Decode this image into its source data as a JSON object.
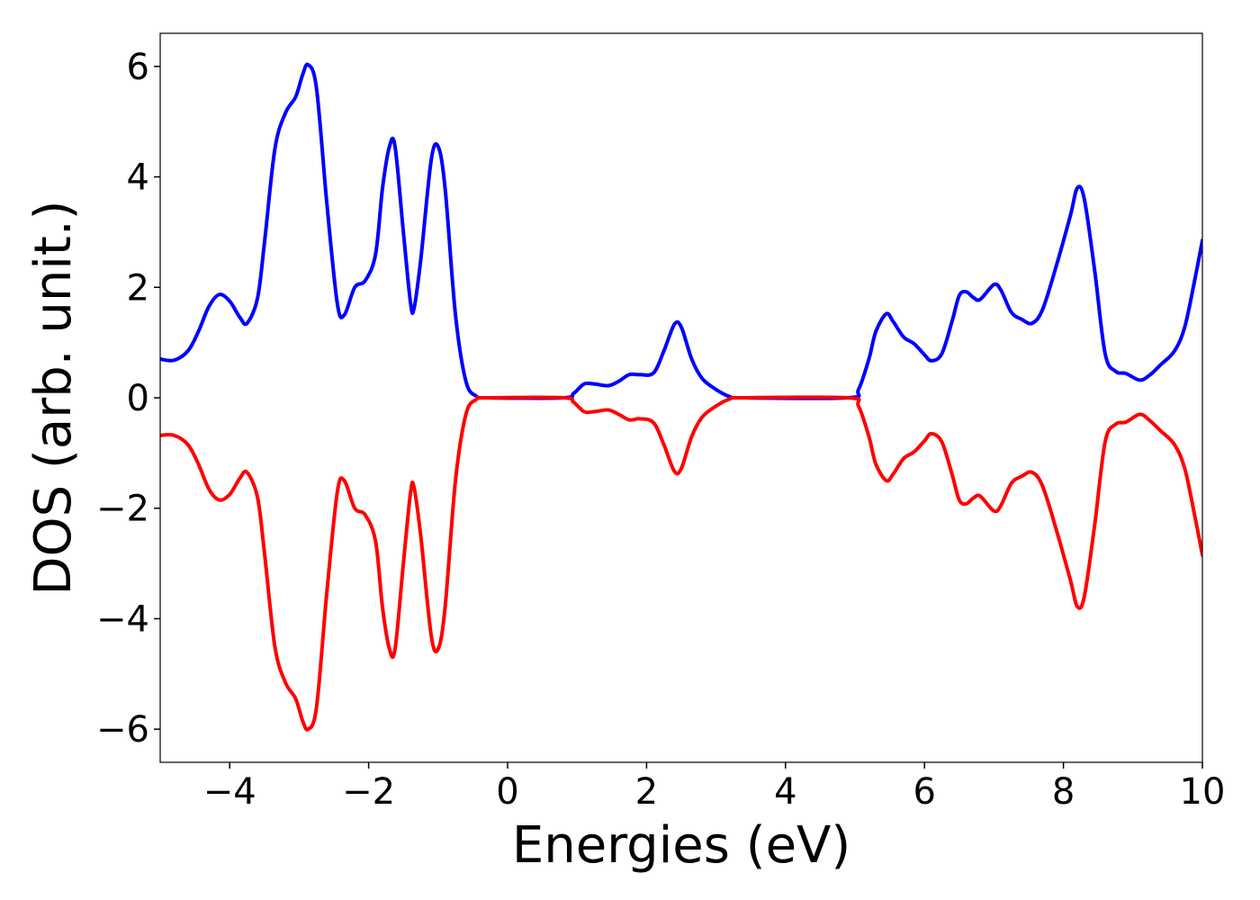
{
  "chart_data": {
    "type": "line",
    "title": "",
    "xlabel": "Energies (eV)",
    "ylabel": "DOS (arb. unit.)",
    "xlim": [
      -5,
      10
    ],
    "ylim": [
      -6.6,
      6.6
    ],
    "x_ticks": [
      -4,
      -2,
      0,
      2,
      4,
      6,
      8,
      10
    ],
    "x_tick_labels": [
      "−4",
      "−2",
      "0",
      "2",
      "4",
      "6",
      "8",
      "10"
    ],
    "y_ticks": [
      -6,
      -4,
      -2,
      0,
      2,
      4,
      6
    ],
    "y_tick_labels": [
      "−6",
      "−4",
      "−2",
      "0",
      "2",
      "4",
      "6"
    ],
    "grid": false,
    "legend": "none",
    "series": [
      {
        "color": "#0000ff",
        "points": [
          [
            -5.0,
            0.7
          ],
          [
            -4.8,
            0.68
          ],
          [
            -4.6,
            0.85
          ],
          [
            -4.45,
            1.2
          ],
          [
            -4.3,
            1.65
          ],
          [
            -4.15,
            1.87
          ],
          [
            -4.0,
            1.75
          ],
          [
            -3.85,
            1.45
          ],
          [
            -3.75,
            1.35
          ],
          [
            -3.6,
            1.8
          ],
          [
            -3.5,
            2.8
          ],
          [
            -3.35,
            4.5
          ],
          [
            -3.2,
            5.15
          ],
          [
            -3.05,
            5.45
          ],
          [
            -2.95,
            5.85
          ],
          [
            -2.87,
            6.03
          ],
          [
            -2.75,
            5.6
          ],
          [
            -2.6,
            3.5
          ],
          [
            -2.45,
            1.7
          ],
          [
            -2.35,
            1.5
          ],
          [
            -2.2,
            2.0
          ],
          [
            -2.05,
            2.12
          ],
          [
            -1.9,
            2.6
          ],
          [
            -1.8,
            3.8
          ],
          [
            -1.7,
            4.55
          ],
          [
            -1.62,
            4.55
          ],
          [
            -1.5,
            3.0
          ],
          [
            -1.4,
            1.75
          ],
          [
            -1.35,
            1.6
          ],
          [
            -1.25,
            2.5
          ],
          [
            -1.1,
            4.3
          ],
          [
            -1.0,
            4.55
          ],
          [
            -0.9,
            3.8
          ],
          [
            -0.75,
            1.5
          ],
          [
            -0.6,
            0.3
          ],
          [
            -0.45,
            0.03
          ],
          [
            -0.3,
            0.0
          ],
          [
            0.8,
            0.0
          ],
          [
            0.95,
            0.08
          ],
          [
            1.1,
            0.25
          ],
          [
            1.25,
            0.25
          ],
          [
            1.45,
            0.22
          ],
          [
            1.6,
            0.3
          ],
          [
            1.75,
            0.42
          ],
          [
            1.9,
            0.42
          ],
          [
            2.1,
            0.45
          ],
          [
            2.25,
            0.85
          ],
          [
            2.4,
            1.33
          ],
          [
            2.5,
            1.28
          ],
          [
            2.65,
            0.7
          ],
          [
            2.8,
            0.35
          ],
          [
            3.0,
            0.15
          ],
          [
            3.2,
            0.02
          ],
          [
            3.4,
            0.0
          ],
          [
            4.9,
            0.0
          ],
          [
            5.05,
            0.15
          ],
          [
            5.2,
            0.7
          ],
          [
            5.3,
            1.2
          ],
          [
            5.45,
            1.52
          ],
          [
            5.55,
            1.38
          ],
          [
            5.7,
            1.1
          ],
          [
            5.85,
            0.98
          ],
          [
            6.0,
            0.78
          ],
          [
            6.1,
            0.67
          ],
          [
            6.25,
            0.8
          ],
          [
            6.4,
            1.4
          ],
          [
            6.5,
            1.85
          ],
          [
            6.6,
            1.92
          ],
          [
            6.7,
            1.82
          ],
          [
            6.8,
            1.78
          ],
          [
            7.0,
            2.05
          ],
          [
            7.1,
            1.95
          ],
          [
            7.25,
            1.55
          ],
          [
            7.4,
            1.42
          ],
          [
            7.55,
            1.35
          ],
          [
            7.7,
            1.6
          ],
          [
            7.9,
            2.4
          ],
          [
            8.1,
            3.3
          ],
          [
            8.2,
            3.8
          ],
          [
            8.3,
            3.6
          ],
          [
            8.45,
            2.3
          ],
          [
            8.6,
            0.8
          ],
          [
            8.75,
            0.48
          ],
          [
            8.9,
            0.44
          ],
          [
            9.1,
            0.32
          ],
          [
            9.25,
            0.42
          ],
          [
            9.4,
            0.6
          ],
          [
            9.6,
            0.85
          ],
          [
            9.75,
            1.3
          ],
          [
            9.9,
            2.2
          ],
          [
            10.0,
            2.85
          ]
        ]
      },
      {
        "color": "#ff0000",
        "points": [
          [
            -5.0,
            -0.68
          ],
          [
            -4.8,
            -0.68
          ],
          [
            -4.6,
            -0.85
          ],
          [
            -4.45,
            -1.2
          ],
          [
            -4.3,
            -1.65
          ],
          [
            -4.15,
            -1.85
          ],
          [
            -4.0,
            -1.75
          ],
          [
            -3.85,
            -1.45
          ],
          [
            -3.75,
            -1.35
          ],
          [
            -3.6,
            -1.8
          ],
          [
            -3.5,
            -2.8
          ],
          [
            -3.35,
            -4.5
          ],
          [
            -3.2,
            -5.15
          ],
          [
            -3.05,
            -5.45
          ],
          [
            -2.95,
            -5.85
          ],
          [
            -2.87,
            -6.0
          ],
          [
            -2.75,
            -5.6
          ],
          [
            -2.6,
            -3.5
          ],
          [
            -2.45,
            -1.7
          ],
          [
            -2.35,
            -1.5
          ],
          [
            -2.2,
            -2.0
          ],
          [
            -2.05,
            -2.12
          ],
          [
            -1.9,
            -2.6
          ],
          [
            -1.8,
            -3.8
          ],
          [
            -1.7,
            -4.55
          ],
          [
            -1.62,
            -4.55
          ],
          [
            -1.5,
            -3.0
          ],
          [
            -1.4,
            -1.75
          ],
          [
            -1.35,
            -1.6
          ],
          [
            -1.25,
            -2.5
          ],
          [
            -1.1,
            -4.3
          ],
          [
            -1.0,
            -4.55
          ],
          [
            -0.9,
            -3.8
          ],
          [
            -0.75,
            -1.5
          ],
          [
            -0.6,
            -0.3
          ],
          [
            -0.45,
            -0.03
          ],
          [
            -0.3,
            0.0
          ],
          [
            0.8,
            0.0
          ],
          [
            0.95,
            -0.08
          ],
          [
            1.1,
            -0.25
          ],
          [
            1.25,
            -0.25
          ],
          [
            1.45,
            -0.22
          ],
          [
            1.6,
            -0.3
          ],
          [
            1.75,
            -0.4
          ],
          [
            1.9,
            -0.38
          ],
          [
            2.1,
            -0.45
          ],
          [
            2.25,
            -0.85
          ],
          [
            2.4,
            -1.33
          ],
          [
            2.5,
            -1.28
          ],
          [
            2.65,
            -0.7
          ],
          [
            2.8,
            -0.35
          ],
          [
            3.0,
            -0.15
          ],
          [
            3.2,
            -0.02
          ],
          [
            3.4,
            0.0
          ],
          [
            4.9,
            0.0
          ],
          [
            5.05,
            -0.15
          ],
          [
            5.2,
            -0.7
          ],
          [
            5.3,
            -1.2
          ],
          [
            5.45,
            -1.5
          ],
          [
            5.55,
            -1.38
          ],
          [
            5.7,
            -1.1
          ],
          [
            5.85,
            -0.98
          ],
          [
            6.0,
            -0.78
          ],
          [
            6.1,
            -0.65
          ],
          [
            6.25,
            -0.8
          ],
          [
            6.4,
            -1.4
          ],
          [
            6.5,
            -1.85
          ],
          [
            6.6,
            -1.92
          ],
          [
            6.7,
            -1.82
          ],
          [
            6.8,
            -1.78
          ],
          [
            7.0,
            -2.05
          ],
          [
            7.1,
            -1.95
          ],
          [
            7.25,
            -1.55
          ],
          [
            7.4,
            -1.42
          ],
          [
            7.55,
            -1.35
          ],
          [
            7.7,
            -1.6
          ],
          [
            7.9,
            -2.4
          ],
          [
            8.1,
            -3.3
          ],
          [
            8.2,
            -3.78
          ],
          [
            8.3,
            -3.6
          ],
          [
            8.45,
            -2.3
          ],
          [
            8.6,
            -0.8
          ],
          [
            8.75,
            -0.48
          ],
          [
            8.9,
            -0.44
          ],
          [
            9.1,
            -0.3
          ],
          [
            9.25,
            -0.42
          ],
          [
            9.4,
            -0.6
          ],
          [
            9.6,
            -0.85
          ],
          [
            9.75,
            -1.3
          ],
          [
            9.9,
            -2.2
          ],
          [
            10.0,
            -2.85
          ]
        ]
      }
    ]
  }
}
